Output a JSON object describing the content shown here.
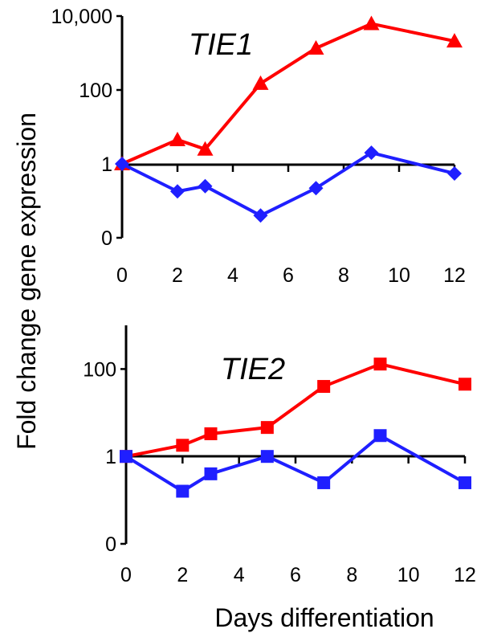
{
  "ylabel": "Fold change gene expression",
  "xlabel": "Days differentiation",
  "colors": {
    "red": "#ff0000",
    "blue": "#1f1fff"
  },
  "chart_data": [
    {
      "type": "line",
      "title": "TIE1",
      "y_scale": "log",
      "ylim": [
        0.01,
        10000
      ],
      "xlim": [
        0,
        12
      ],
      "x_ticks": [
        "0",
        "2",
        "4",
        "6",
        "8",
        "10",
        "12"
      ],
      "y_ticks": [
        {
          "value": 0.01,
          "label": "0"
        },
        {
          "value": 1,
          "label": "1"
        },
        {
          "value": 100,
          "label": "100"
        },
        {
          "value": 10000,
          "label": "10,000"
        }
      ],
      "series": [
        {
          "color": "#ff0000",
          "marker": "triangle",
          "x": [
            0,
            2,
            3,
            5,
            7,
            9,
            12
          ],
          "y": [
            1,
            4.5,
            2.5,
            150,
            1350,
            6200,
            2100
          ]
        },
        {
          "color": "#1f1fff",
          "marker": "diamond",
          "x": [
            0,
            2,
            3,
            5,
            7,
            9,
            12
          ],
          "y": [
            1,
            0.18,
            0.25,
            0.04,
            0.22,
            2,
            0.55
          ]
        }
      ]
    },
    {
      "type": "line",
      "title": "TIE2",
      "y_scale": "log",
      "ylim": [
        0.01,
        1000
      ],
      "xlim": [
        0,
        12
      ],
      "x_ticks": [
        "0",
        "2",
        "4",
        "6",
        "8",
        "10",
        "12"
      ],
      "y_ticks": [
        {
          "value": 0.01,
          "label": "0"
        },
        {
          "value": 1,
          "label": "1"
        },
        {
          "value": 100,
          "label": "100"
        }
      ],
      "series": [
        {
          "color": "#ff0000",
          "marker": "square",
          "x": [
            0,
            2,
            3,
            5,
            7,
            9,
            12
          ],
          "y": [
            1,
            1.8,
            3.3,
            4.6,
            40,
            130,
            45
          ]
        },
        {
          "color": "#1f1fff",
          "marker": "square",
          "x": [
            0,
            2,
            3,
            5,
            7,
            9,
            12
          ],
          "y": [
            1,
            0.16,
            0.4,
            1,
            0.25,
            3,
            0.25
          ]
        }
      ]
    }
  ]
}
